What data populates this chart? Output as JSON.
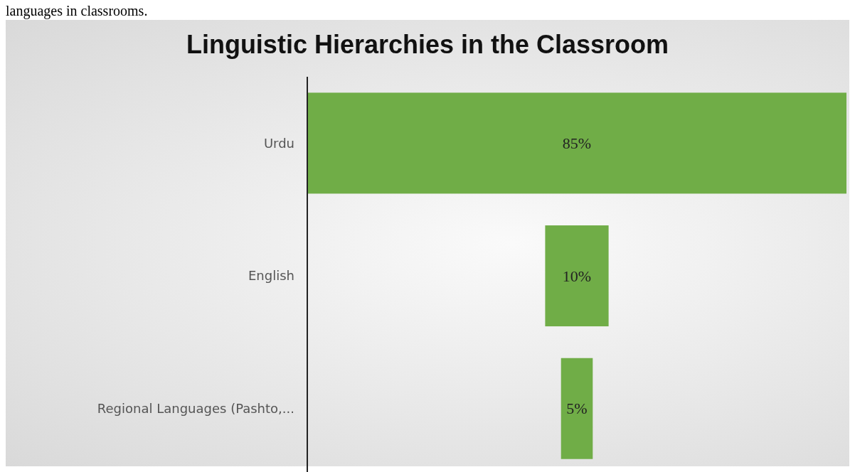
{
  "chart_data": {
    "type": "other",
    "title": "Linguistic Hierarchies in the Classroom",
    "annotations": [
      "languages in classrooms."
    ],
    "categories": [
      "Urdu",
      "English",
      "Regional Languages (Pashto,..."
    ],
    "values": [
      85,
      10,
      5
    ],
    "value_labels": [
      "85%",
      "10%",
      "5%"
    ],
    "color": "#70ad47"
  }
}
